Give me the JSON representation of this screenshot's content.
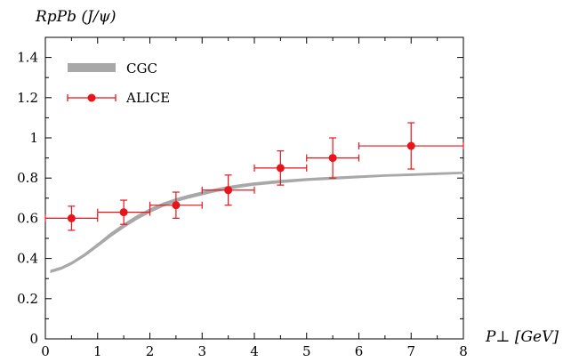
{
  "chart_data": {
    "type": "line",
    "title": "",
    "xlabel": "P⊥ [GeV]",
    "ylabel": "RpPb (J/ψ)",
    "xlim": [
      0,
      8
    ],
    "ylim": [
      0,
      1.5
    ],
    "x_ticks": [
      0,
      1,
      2,
      3,
      4,
      5,
      6,
      7,
      8
    ],
    "y_ticks": [
      0,
      0.2,
      0.4,
      0.6,
      0.8,
      1,
      1.2,
      1.4
    ],
    "x_tick_labels": [
      "0",
      "1",
      "2",
      "3",
      "4",
      "5",
      "6",
      "7",
      "8"
    ],
    "y_tick_labels": [
      "0",
      "0.2",
      "0.4",
      "0.6",
      "0.8",
      "1",
      "1.2",
      "1.4"
    ],
    "grid": false,
    "legend_position": "top-left",
    "series": [
      {
        "name": "CGC",
        "kind": "band",
        "color": "#a8a8a8",
        "x": [
          0.1,
          0.3,
          0.5,
          0.75,
          1.0,
          1.25,
          1.5,
          1.75,
          2.0,
          2.25,
          2.5,
          2.75,
          3.0,
          3.25,
          3.5,
          3.75,
          4.0,
          4.5,
          5.0,
          5.5,
          6.0,
          6.5,
          7.0,
          7.5,
          8.0
        ],
        "lower": [
          0.33,
          0.345,
          0.37,
          0.41,
          0.458,
          0.508,
          0.553,
          0.594,
          0.629,
          0.658,
          0.682,
          0.7,
          0.716,
          0.731,
          0.744,
          0.755,
          0.764,
          0.776,
          0.787,
          0.794,
          0.801,
          0.808,
          0.812,
          0.817,
          0.822
        ],
        "upper": [
          0.342,
          0.357,
          0.382,
          0.424,
          0.474,
          0.526,
          0.572,
          0.613,
          0.647,
          0.676,
          0.698,
          0.716,
          0.731,
          0.746,
          0.759,
          0.769,
          0.777,
          0.789,
          0.798,
          0.805,
          0.811,
          0.817,
          0.821,
          0.826,
          0.83
        ]
      },
      {
        "name": "ALICE",
        "kind": "points",
        "color": "#e8141a",
        "x": [
          0.5,
          1.5,
          2.5,
          3.5,
          4.5,
          5.5,
          7.0
        ],
        "y": [
          0.6,
          0.63,
          0.665,
          0.74,
          0.85,
          0.9,
          0.96
        ],
        "x_err": [
          0.5,
          0.5,
          0.5,
          0.5,
          0.5,
          0.5,
          1.0
        ],
        "y_err": [
          0.06,
          0.06,
          0.065,
          0.075,
          0.085,
          0.1,
          0.115
        ]
      }
    ]
  }
}
